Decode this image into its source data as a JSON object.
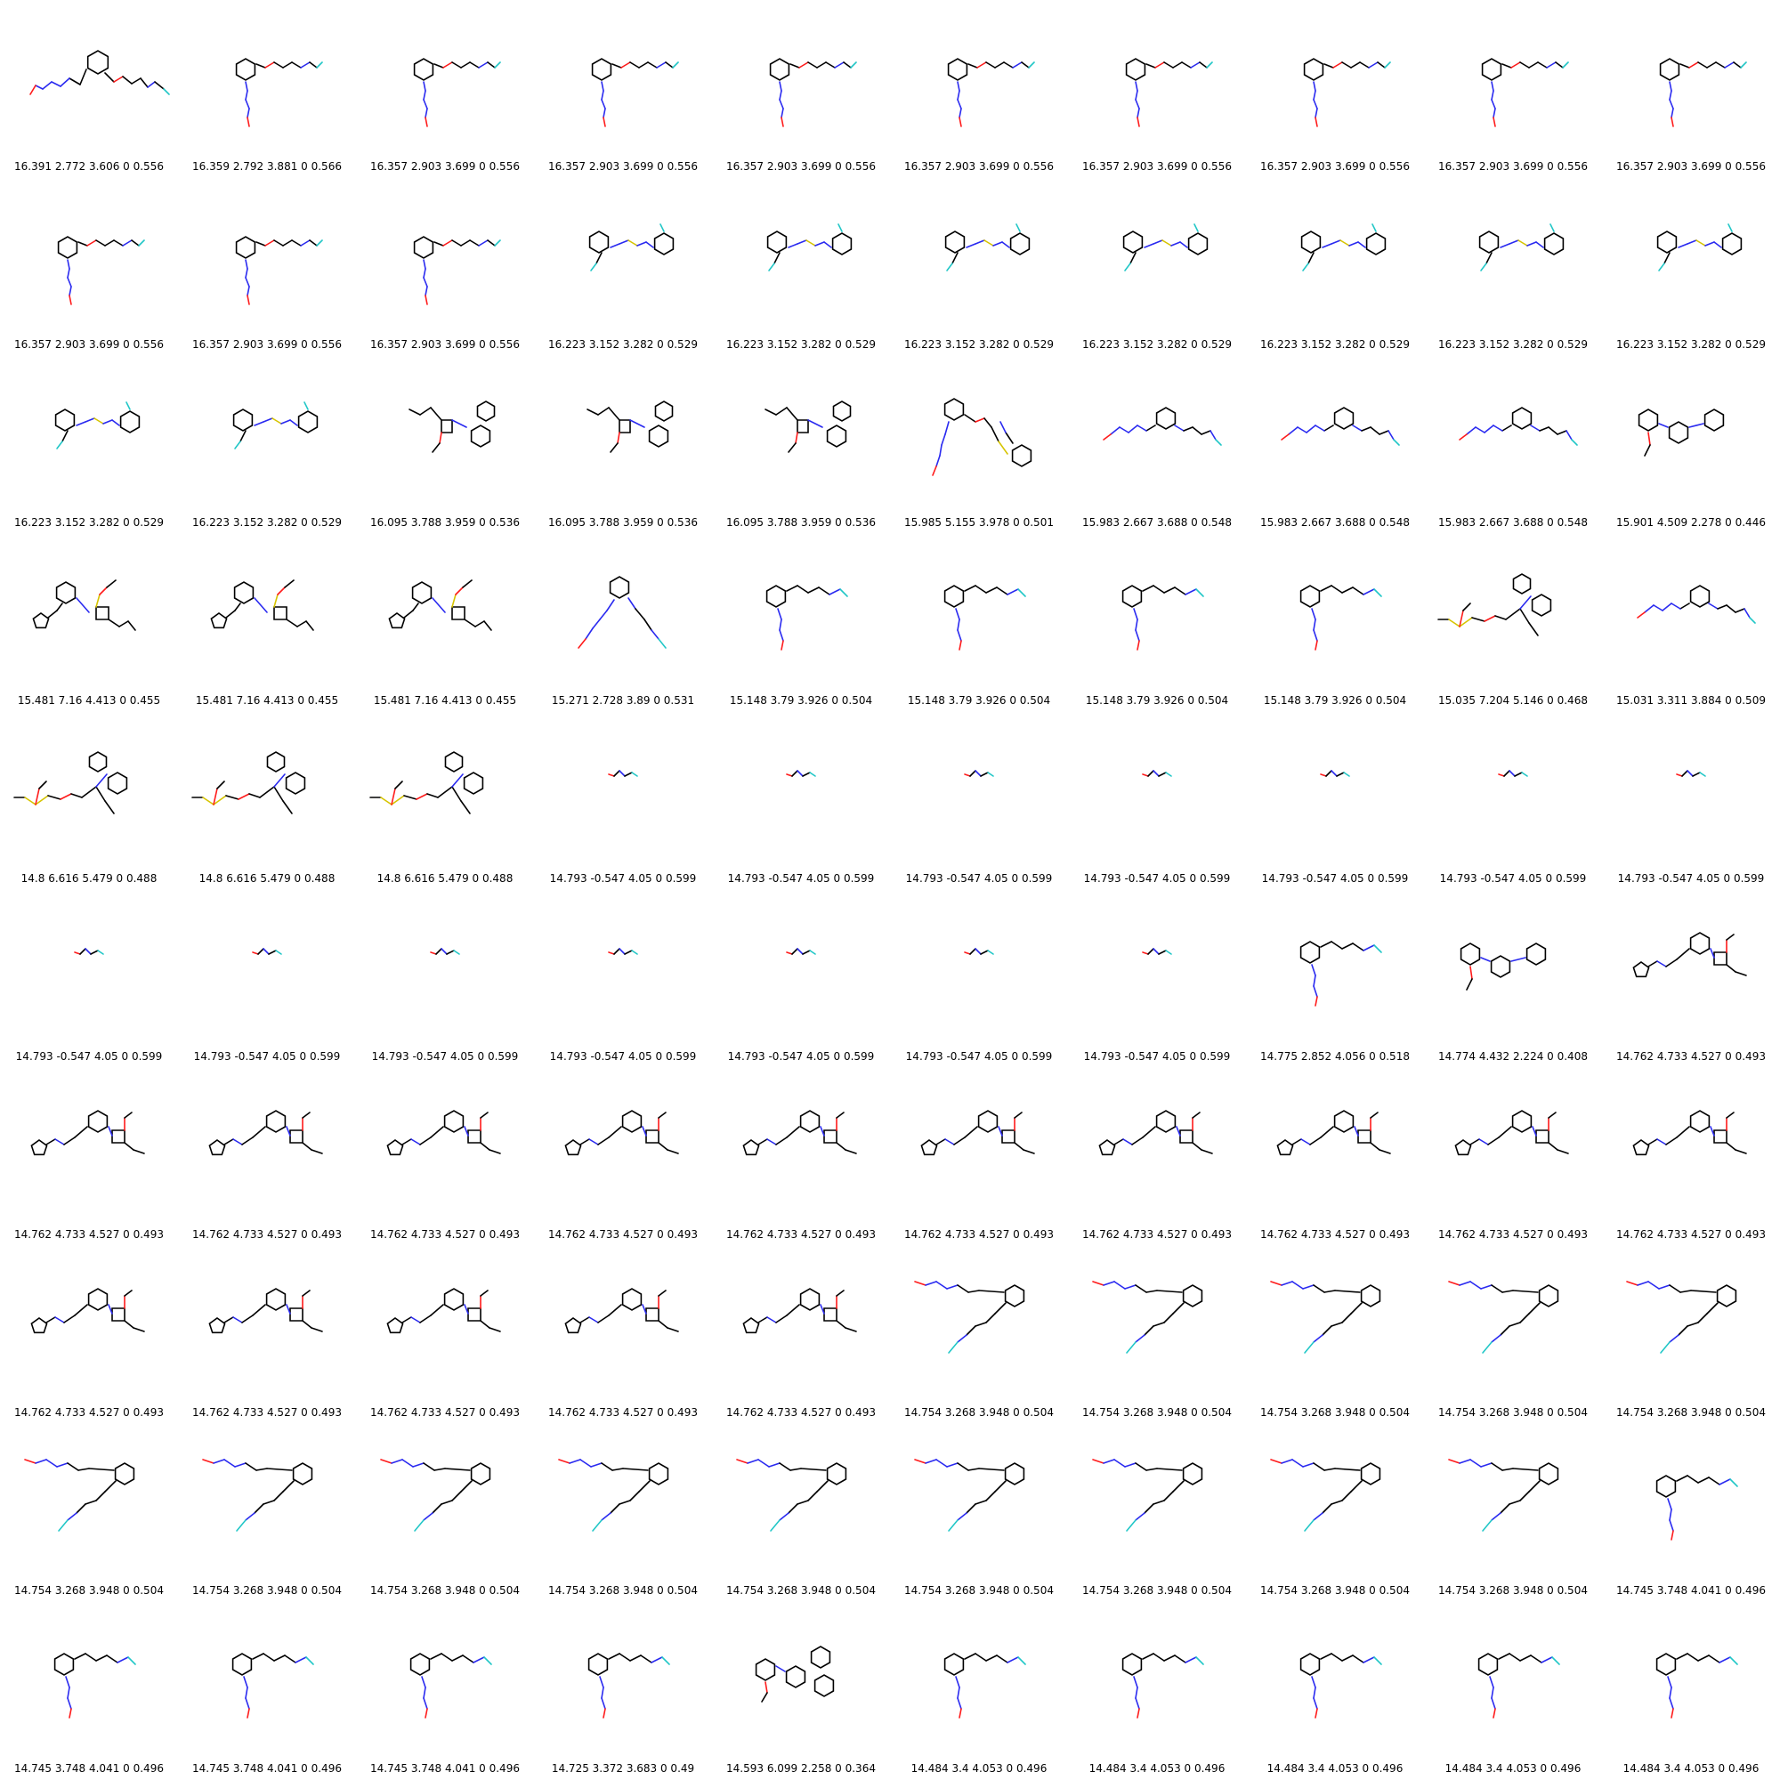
{
  "molecule_types": {
    "A": "ortho-substituted benzyl ether with diazene chain (hook down)",
    "A0": "benzyl ether, diazene hanging left",
    "B": "two rings linked by N-S-N chain",
    "C": "azetidine with pyridyl-phenyl",
    "D": "ether chain plus phenyl thioether",
    "E": "benzene with two arms (diazene and amine)",
    "F": "methoxy phenyl amine pyridine",
    "G": "thiophene / cyclobutene with sulfur ether",
    "H": "long diazene-amine chain",
    "I": "phenyl with alkyl chain, diazene down",
    "J": "cyclopropyl biphenyl with sulfur chain",
    "K": "small O-N-F fragment",
    "L": "thiophene diazene azetidine",
    "M": "benzene with diazene top-left and chain bottom-left",
    "N": "terphenyl amine with pyridine"
  },
  "cells": [
    {
      "type": "A0",
      "label": "16.391 2.772 3.606 0 0.556"
    },
    {
      "type": "A",
      "label": "16.359 2.792 3.881 0 0.566"
    },
    {
      "type": "A",
      "label": "16.357 2.903 3.699 0 0.556"
    },
    {
      "type": "A",
      "label": "16.357 2.903 3.699 0 0.556"
    },
    {
      "type": "A",
      "label": "16.357 2.903 3.699 0 0.556"
    },
    {
      "type": "A",
      "label": "16.357 2.903 3.699 0 0.556"
    },
    {
      "type": "A",
      "label": "16.357 2.903 3.699 0 0.556"
    },
    {
      "type": "A",
      "label": "16.357 2.903 3.699 0 0.556"
    },
    {
      "type": "A",
      "label": "16.357 2.903 3.699 0 0.556"
    },
    {
      "type": "A",
      "label": "16.357 2.903 3.699 0 0.556"
    },
    {
      "type": "A",
      "label": "16.357 2.903 3.699 0 0.556"
    },
    {
      "type": "A",
      "label": "16.357 2.903 3.699 0 0.556"
    },
    {
      "type": "A",
      "label": "16.357 2.903 3.699 0 0.556"
    },
    {
      "type": "B",
      "label": "16.223 3.152 3.282 0 0.529"
    },
    {
      "type": "B",
      "label": "16.223 3.152 3.282 0 0.529"
    },
    {
      "type": "B",
      "label": "16.223 3.152 3.282 0 0.529"
    },
    {
      "type": "B",
      "label": "16.223 3.152 3.282 0 0.529"
    },
    {
      "type": "B",
      "label": "16.223 3.152 3.282 0 0.529"
    },
    {
      "type": "B",
      "label": "16.223 3.152 3.282 0 0.529"
    },
    {
      "type": "B",
      "label": "16.223 3.152 3.282 0 0.529"
    },
    {
      "type": "B",
      "label": "16.223 3.152 3.282 0 0.529"
    },
    {
      "type": "B",
      "label": "16.223 3.152 3.282 0 0.529"
    },
    {
      "type": "C",
      "label": "16.095 3.788 3.959 0 0.536"
    },
    {
      "type": "C",
      "label": "16.095 3.788 3.959 0 0.536"
    },
    {
      "type": "C",
      "label": "16.095 3.788 3.959 0 0.536"
    },
    {
      "type": "D",
      "label": "15.985 5.155 3.978 0 0.501"
    },
    {
      "type": "E",
      "label": "15.983 2.667 3.688 0 0.548"
    },
    {
      "type": "E",
      "label": "15.983 2.667 3.688 0 0.548"
    },
    {
      "type": "E",
      "label": "15.983 2.667 3.688 0 0.548"
    },
    {
      "type": "F",
      "label": "15.901 4.509 2.278 0 0.446"
    },
    {
      "type": "G",
      "label": "15.481 7.16 4.413 0 0.455"
    },
    {
      "type": "G",
      "label": "15.481 7.16 4.413 0 0.455"
    },
    {
      "type": "G",
      "label": "15.481 7.16 4.413 0 0.455"
    },
    {
      "type": "H",
      "label": "15.271 2.728 3.89 0 0.531"
    },
    {
      "type": "I",
      "label": "15.148 3.79 3.926 0 0.504"
    },
    {
      "type": "I",
      "label": "15.148 3.79 3.926 0 0.504"
    },
    {
      "type": "I",
      "label": "15.148 3.79 3.926 0 0.504"
    },
    {
      "type": "I",
      "label": "15.148 3.79 3.926 0 0.504"
    },
    {
      "type": "J",
      "label": "15.035 7.204 5.146 0 0.468"
    },
    {
      "type": "E",
      "label": "15.031 3.311 3.884 0 0.509"
    },
    {
      "type": "J",
      "label": "14.8 6.616 5.479 0 0.488"
    },
    {
      "type": "J",
      "label": "14.8 6.616 5.479 0 0.488"
    },
    {
      "type": "J",
      "label": "14.8 6.616 5.479 0 0.488"
    },
    {
      "type": "K",
      "label": "14.793 -0.547 4.05 0 0.599"
    },
    {
      "type": "K",
      "label": "14.793 -0.547 4.05 0 0.599"
    },
    {
      "type": "K",
      "label": "14.793 -0.547 4.05 0 0.599"
    },
    {
      "type": "K",
      "label": "14.793 -0.547 4.05 0 0.599"
    },
    {
      "type": "K",
      "label": "14.793 -0.547 4.05 0 0.599"
    },
    {
      "type": "K",
      "label": "14.793 -0.547 4.05 0 0.599"
    },
    {
      "type": "K",
      "label": "14.793 -0.547 4.05 0 0.599"
    },
    {
      "type": "K",
      "label": "14.793 -0.547 4.05 0 0.599"
    },
    {
      "type": "K",
      "label": "14.793 -0.547 4.05 0 0.599"
    },
    {
      "type": "K",
      "label": "14.793 -0.547 4.05 0 0.599"
    },
    {
      "type": "K",
      "label": "14.793 -0.547 4.05 0 0.599"
    },
    {
      "type": "K",
      "label": "14.793 -0.547 4.05 0 0.599"
    },
    {
      "type": "K",
      "label": "14.793 -0.547 4.05 0 0.599"
    },
    {
      "type": "K",
      "label": "14.793 -0.547 4.05 0 0.599"
    },
    {
      "type": "I",
      "label": "14.775 2.852 4.056 0 0.518"
    },
    {
      "type": "F",
      "label": "14.774 4.432 2.224 0 0.408"
    },
    {
      "type": "L",
      "label": "14.762 4.733 4.527 0 0.493"
    },
    {
      "type": "L",
      "label": "14.762 4.733 4.527 0 0.493"
    },
    {
      "type": "L",
      "label": "14.762 4.733 4.527 0 0.493"
    },
    {
      "type": "L",
      "label": "14.762 4.733 4.527 0 0.493"
    },
    {
      "type": "L",
      "label": "14.762 4.733 4.527 0 0.493"
    },
    {
      "type": "L",
      "label": "14.762 4.733 4.527 0 0.493"
    },
    {
      "type": "L",
      "label": "14.762 4.733 4.527 0 0.493"
    },
    {
      "type": "L",
      "label": "14.762 4.733 4.527 0 0.493"
    },
    {
      "type": "L",
      "label": "14.762 4.733 4.527 0 0.493"
    },
    {
      "type": "L",
      "label": "14.762 4.733 4.527 0 0.493"
    },
    {
      "type": "L",
      "label": "14.762 4.733 4.527 0 0.493"
    },
    {
      "type": "L",
      "label": "14.762 4.733 4.527 0 0.493"
    },
    {
      "type": "L",
      "label": "14.762 4.733 4.527 0 0.493"
    },
    {
      "type": "L",
      "label": "14.762 4.733 4.527 0 0.493"
    },
    {
      "type": "L",
      "label": "14.762 4.733 4.527 0 0.493"
    },
    {
      "type": "L",
      "label": "14.762 4.733 4.527 0 0.493"
    },
    {
      "type": "M",
      "label": "14.754 3.268 3.948 0 0.504"
    },
    {
      "type": "M",
      "label": "14.754 3.268 3.948 0 0.504"
    },
    {
      "type": "M",
      "label": "14.754 3.268 3.948 0 0.504"
    },
    {
      "type": "M",
      "label": "14.754 3.268 3.948 0 0.504"
    },
    {
      "type": "M",
      "label": "14.754 3.268 3.948 0 0.504"
    },
    {
      "type": "M",
      "label": "14.754 3.268 3.948 0 0.504"
    },
    {
      "type": "M",
      "label": "14.754 3.268 3.948 0 0.504"
    },
    {
      "type": "M",
      "label": "14.754 3.268 3.948 0 0.504"
    },
    {
      "type": "M",
      "label": "14.754 3.268 3.948 0 0.504"
    },
    {
      "type": "M",
      "label": "14.754 3.268 3.948 0 0.504"
    },
    {
      "type": "M",
      "label": "14.754 3.268 3.948 0 0.504"
    },
    {
      "type": "M",
      "label": "14.754 3.268 3.948 0 0.504"
    },
    {
      "type": "M",
      "label": "14.754 3.268 3.948 0 0.504"
    },
    {
      "type": "M",
      "label": "14.754 3.268 3.948 0 0.504"
    },
    {
      "type": "I",
      "label": "14.745 3.748 4.041 0 0.496"
    },
    {
      "type": "I",
      "label": "14.745 3.748 4.041 0 0.496"
    },
    {
      "type": "I",
      "label": "14.745 3.748 4.041 0 0.496"
    },
    {
      "type": "I",
      "label": "14.745 3.748 4.041 0 0.496"
    },
    {
      "type": "I",
      "label": "14.725 3.372 3.683 0 0.49"
    },
    {
      "type": "N",
      "label": "14.593 6.099 2.258 0 0.364"
    },
    {
      "type": "I",
      "label": "14.484 3.4 4.053 0 0.496"
    },
    {
      "type": "I",
      "label": "14.484 3.4 4.053 0 0.496"
    },
    {
      "type": "I",
      "label": "14.484 3.4 4.053 0 0.496"
    },
    {
      "type": "I",
      "label": "14.484 3.4 4.053 0 0.496"
    },
    {
      "type": "I",
      "label": "14.484 3.4 4.053 0 0.496"
    }
  ]
}
